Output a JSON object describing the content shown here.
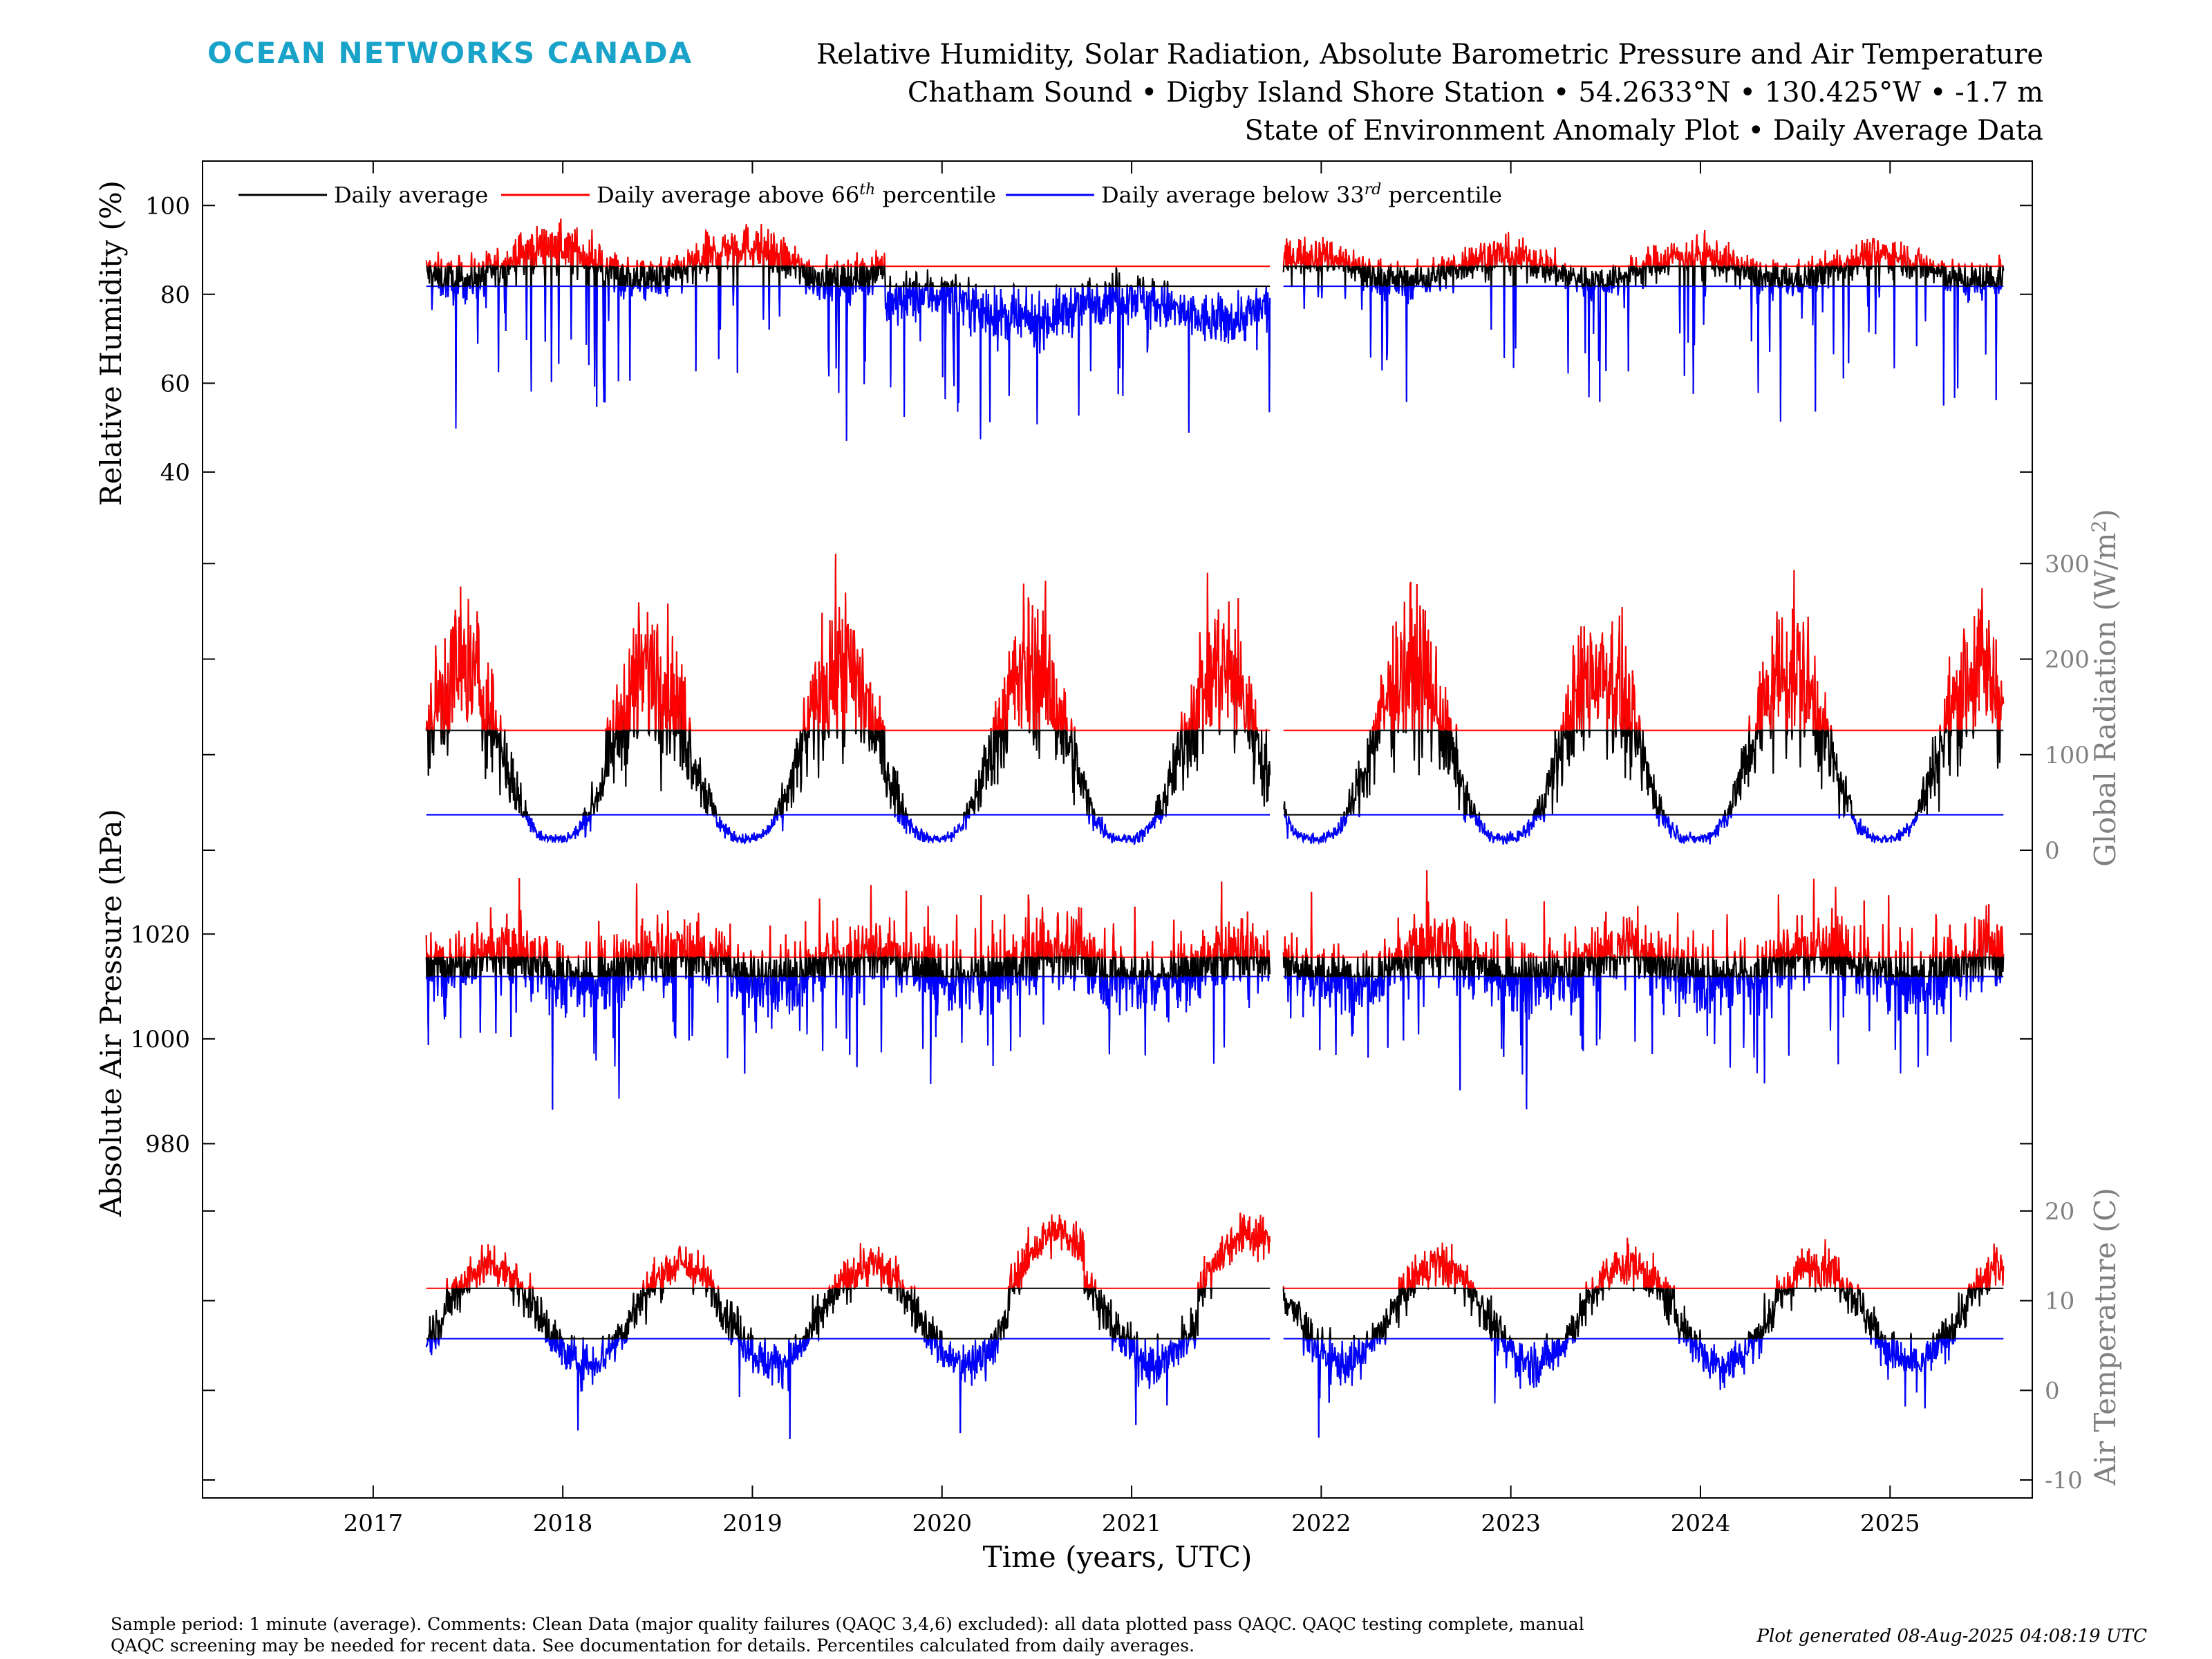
{
  "header": {
    "brand": "OCEAN NETWORKS CANADA",
    "title_line1": "Relative Humidity, Solar Radiation, Absolute Barometric Pressure and Air Temperature",
    "title_line2": "Chatham Sound • Digby Island Shore Station • 54.2633°N • 130.425°W • -1.7 m",
    "title_line3": "State of Environment Anomaly Plot • Daily Average Data"
  },
  "footer": {
    "comment_line1": "Sample period: 1 minute (average). Comments: Clean Data (major quality failures (QAQC 3,4,6) excluded): all data plotted pass QAQC. QAQC testing complete, manual",
    "comment_line2": "QAQC screening may be needed for recent data. See documentation for details. Percentiles calculated from daily averages.",
    "generated": "Plot generated 08-Aug-2025 04:08:19 UTC"
  },
  "colors": {
    "average": "#000000",
    "above": "#ff0000",
    "below": "#0000ff",
    "right_axis": "#808080",
    "brand": "#1aa3c9"
  },
  "chart_data": {
    "type": "line",
    "xlabel": "Time (years, UTC)",
    "x_ticks": [
      "2017",
      "2018",
      "2019",
      "2020",
      "2021",
      "2022",
      "2023",
      "2024",
      "2025"
    ],
    "xlim": [
      2016.1,
      2025.75
    ],
    "data_start": 2017.28,
    "data_end": 2025.6,
    "legend": {
      "placement": "top-left",
      "entries": [
        {
          "prefix": "Daily average",
          "sup": "",
          "suffix": "",
          "series": "average"
        },
        {
          "prefix": "Daily average above 66",
          "sup": "th",
          "suffix": " percentile",
          "series": "above"
        },
        {
          "prefix": "Daily average below 33",
          "sup": "rd",
          "suffix": " percentile",
          "series": "below"
        }
      ]
    },
    "panels": [
      {
        "id": "humidity",
        "ylabel": "Relative Humidity (%)",
        "axis_side": "left",
        "ylim": [
          28,
          110
        ],
        "y_ticks": [
          40,
          60,
          80,
          100
        ],
        "gaps": [
          [
            2021.73,
            2021.8
          ]
        ],
        "segments": [
          {
            "x0": 2017.28,
            "x1": 2019.7,
            "mean": 87,
            "seasonal": 4,
            "noise": 6,
            "spike_rate": 0.05,
            "spike_depth": 35,
            "min": 30,
            "max": 100
          },
          {
            "x0": 2019.7,
            "x1": 2021.75,
            "mean": 77,
            "seasonal": 3,
            "noise": 7,
            "spike_rate": 0.04,
            "spike_depth": 28,
            "min": 30,
            "max": 100
          },
          {
            "x0": 2021.75,
            "x1": 2025.6,
            "mean": 86,
            "seasonal": 3,
            "noise": 5,
            "spike_rate": 0.05,
            "spike_depth": 30,
            "min": 30,
            "max": 97
          }
        ]
      },
      {
        "id": "radiation",
        "ylabel": "Global Radiation (W/m",
        "ylabel_sup": "2",
        "ylabel_suffix": ")",
        "axis_side": "right",
        "ylim": [
          0,
          340
        ],
        "y_ticks": [
          0,
          100,
          200,
          300
        ],
        "peak_phase": 0.47,
        "summer_mean": 190,
        "winter_mean": 12,
        "noise_frac": 0.45,
        "max": 335,
        "gaps": [
          [
            2021.73,
            2021.8
          ]
        ]
      },
      {
        "id": "pressure",
        "ylabel": "Absolute Air Pressure (hPa)",
        "axis_side": "left",
        "ylim": [
          974,
          1036
        ],
        "y_ticks": [
          980,
          1000,
          1020
        ],
        "mean": 1014,
        "seasonal": 3,
        "noise": 7,
        "spike_rate": 0.04,
        "spike_depth": 20,
        "min": 978,
        "max": 1035,
        "gaps": [
          [
            2021.73,
            2021.8
          ]
        ]
      },
      {
        "id": "temperature",
        "ylabel": "Air Temperature (C)",
        "axis_side": "right",
        "ylim": [
          -12,
          24
        ],
        "y_ticks": [
          -10,
          0,
          10,
          20
        ],
        "peak_phase": 0.62,
        "mean": 8.5,
        "amplitude": 5.5,
        "noise": 1.8,
        "warm_years": [
          2020,
          2021
        ],
        "warm_offset": 3.5,
        "cold_spike_rate": 0.02,
        "cold_spike_depth": 9,
        "min": -12,
        "max": 23,
        "gaps": [
          [
            2021.73,
            2021.8
          ]
        ]
      }
    ]
  }
}
